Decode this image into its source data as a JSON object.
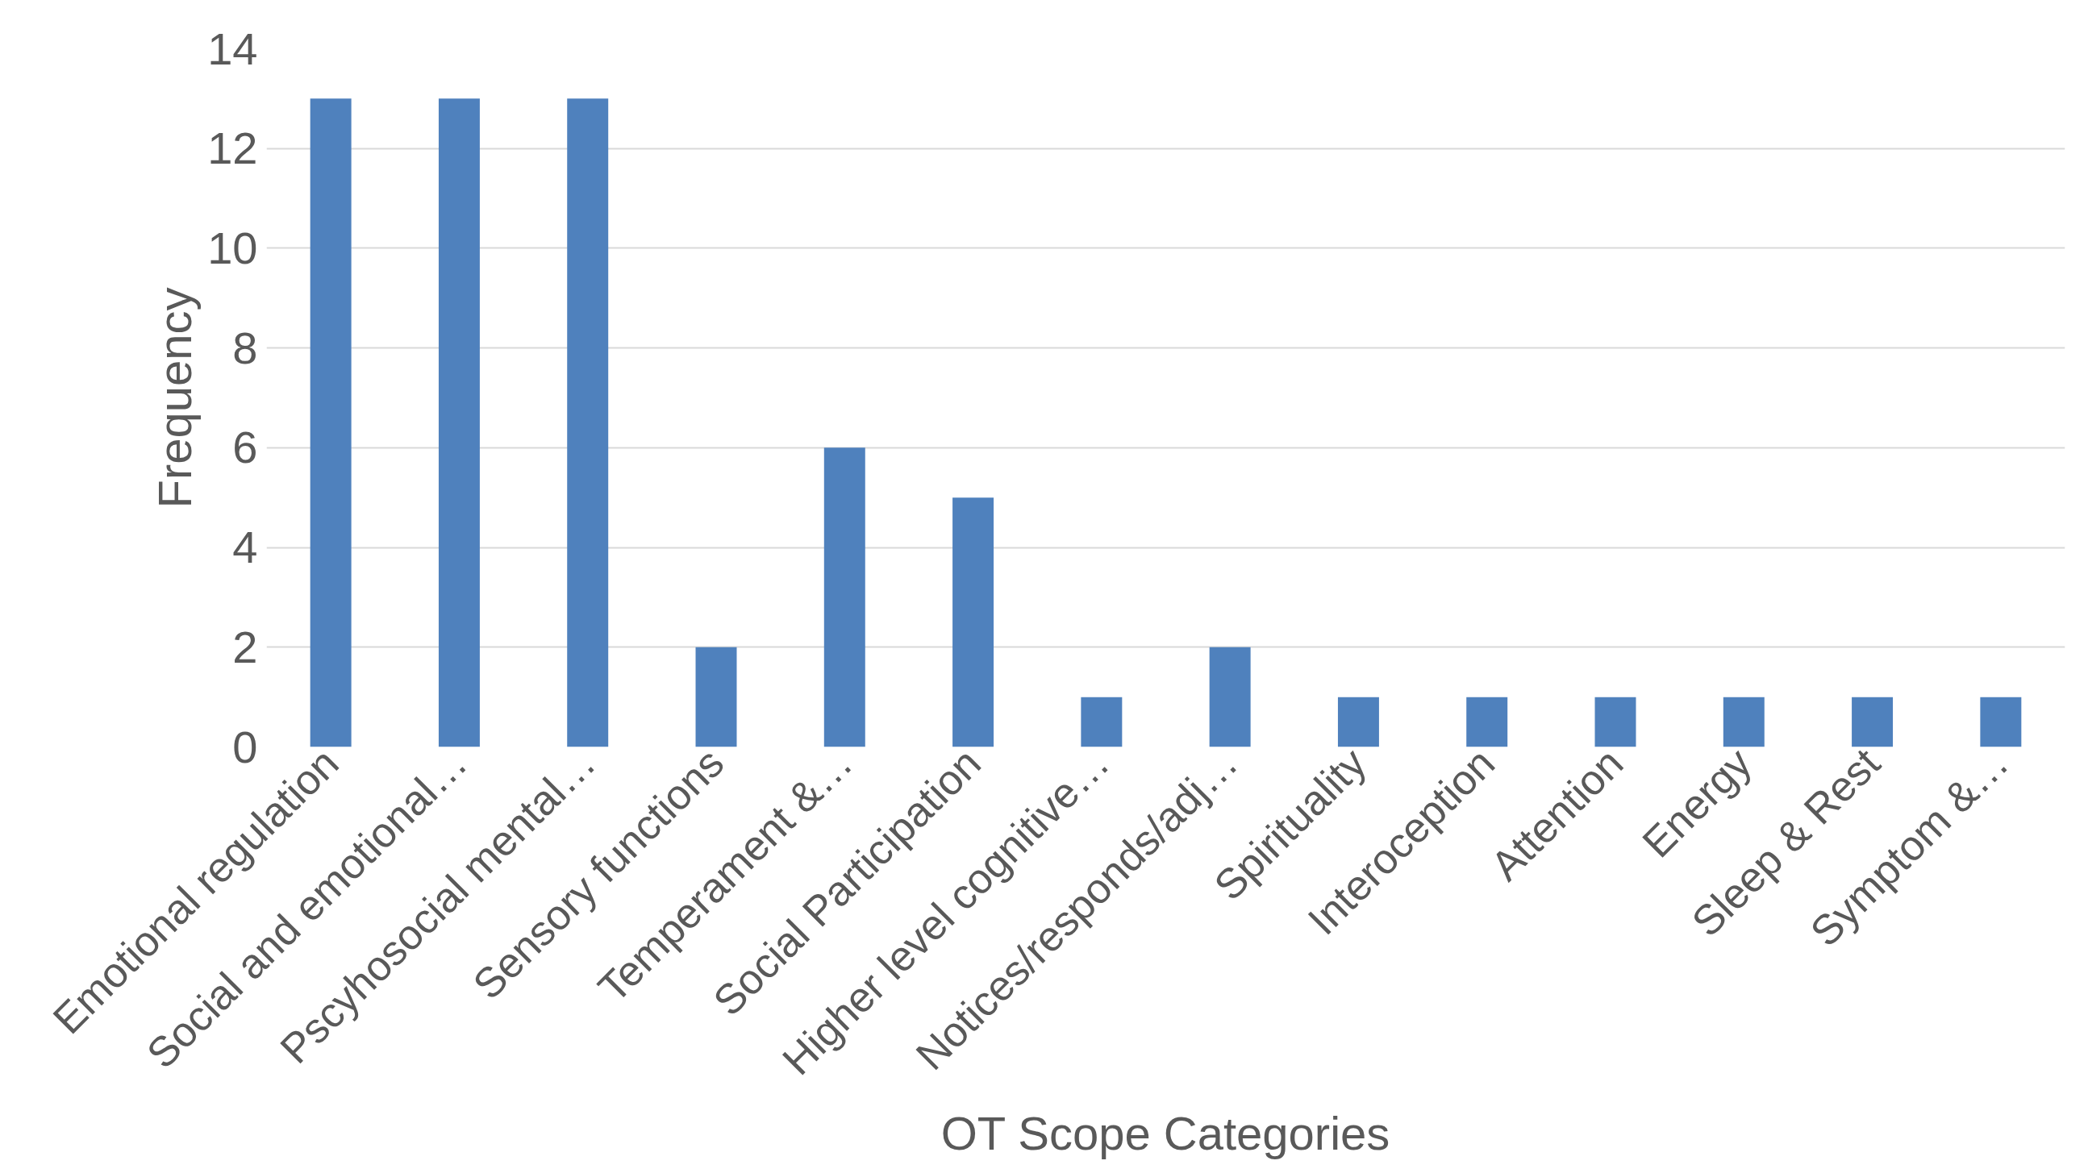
{
  "chart_data": {
    "type": "bar",
    "xlabel": "OT Scope Categories",
    "ylabel": "Frequency",
    "categories": [
      "Emotional regulation",
      "Social and emotional…",
      "Pscyhosocial mental…",
      "Sensory functions",
      "Temperament &…",
      "Social Participation",
      "Higher level cognitive…",
      "Notices/responds/adj…",
      "Spirituality",
      "Interoception",
      "Attention",
      "Energy",
      "Sleep & Rest",
      "Symptom &…"
    ],
    "values": [
      13,
      13,
      13,
      2,
      6,
      5,
      1,
      2,
      1,
      1,
      1,
      1,
      1,
      1
    ],
    "color": "#4f81bd",
    "ylim": [
      0,
      14
    ],
    "yticks": [
      0,
      2,
      4,
      6,
      8,
      10,
      12,
      14
    ],
    "grid": "y"
  }
}
